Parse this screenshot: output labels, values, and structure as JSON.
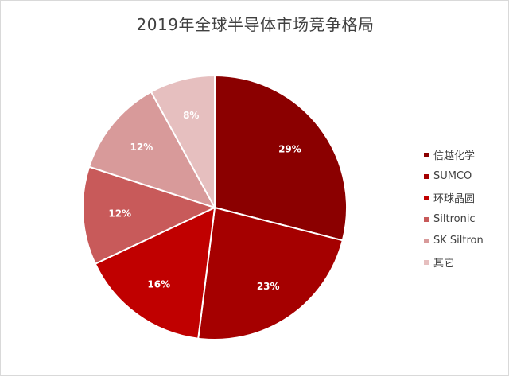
{
  "chart_data": {
    "type": "pie",
    "title": "2019年全球半导体市场竞争格局",
    "categories": [
      "信越化学",
      "SUMCO",
      "环球晶圆",
      "Siltronic",
      "SK Siltron",
      "其它"
    ],
    "values": [
      29,
      23,
      16,
      12,
      12,
      8
    ],
    "data_labels": [
      "29%",
      "23%",
      "16%",
      "12%",
      "12%",
      "8%"
    ],
    "colors": [
      "#8b0000",
      "#a50000",
      "#c00000",
      "#c85a5a",
      "#d89a9a",
      "#e6bfbf"
    ],
    "legend_position": "right"
  }
}
